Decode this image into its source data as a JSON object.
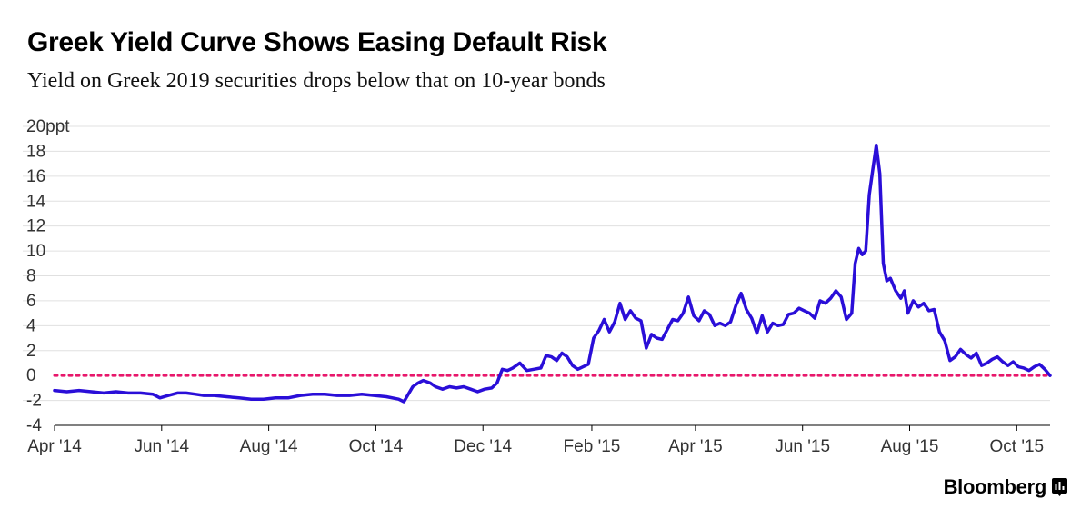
{
  "header": {
    "title": "Greek Yield Curve Shows Easing Default Risk",
    "subtitle": "Yield on Greek 2019 securities drops below that on 10-year bonds"
  },
  "footer": {
    "brand": "Bloomberg"
  },
  "colors": {
    "series": "#2a0ed8",
    "zero_line": "#e8176b",
    "grid": "#e0e0e0",
    "axis": "#000000"
  },
  "chart_data": {
    "type": "line",
    "title": "Greek Yield Curve Shows Easing Default Risk",
    "subtitle": "Yield on Greek 2019 securities drops below that on 10-year bonds",
    "ylim": [
      -4,
      20
    ],
    "yticks": [
      -4,
      -2,
      0,
      2,
      4,
      6,
      8,
      10,
      12,
      14,
      16,
      18,
      20
    ],
    "ytick_labels": [
      "-4",
      "-2",
      "0",
      "2",
      "4",
      "6",
      "8",
      "10",
      "12",
      "14",
      "16",
      "18",
      "20ppt"
    ],
    "xlim": [
      "2014-04-01",
      "2015-10-20"
    ],
    "xticks": [
      "2014-04-01",
      "2014-06-01",
      "2014-08-01",
      "2014-10-01",
      "2014-12-01",
      "2015-02-01",
      "2015-04-01",
      "2015-06-01",
      "2015-08-01",
      "2015-10-01"
    ],
    "xtick_labels": [
      "Apr '14",
      "Jun '14",
      "Aug '14",
      "Oct '14",
      "Dec '14",
      "Feb '15",
      "Apr '15",
      "Jun '15",
      "Aug '15",
      "Oct '15"
    ],
    "grid": true,
    "reference_line": {
      "y": 0,
      "style": "dotted"
    },
    "series": [
      {
        "points": [
          [
            "2014-04-01",
            -1.2
          ],
          [
            "2014-04-08",
            -1.3
          ],
          [
            "2014-04-15",
            -1.2
          ],
          [
            "2014-04-22",
            -1.3
          ],
          [
            "2014-04-29",
            -1.4
          ],
          [
            "2014-05-06",
            -1.3
          ],
          [
            "2014-05-13",
            -1.4
          ],
          [
            "2014-05-20",
            -1.4
          ],
          [
            "2014-05-27",
            -1.5
          ],
          [
            "2014-05-31",
            -1.8
          ],
          [
            "2014-06-05",
            -1.6
          ],
          [
            "2014-06-10",
            -1.4
          ],
          [
            "2014-06-15",
            -1.4
          ],
          [
            "2014-06-20",
            -1.5
          ],
          [
            "2014-06-25",
            -1.6
          ],
          [
            "2014-07-01",
            -1.6
          ],
          [
            "2014-07-08",
            -1.7
          ],
          [
            "2014-07-15",
            -1.8
          ],
          [
            "2014-07-22",
            -1.9
          ],
          [
            "2014-07-29",
            -1.9
          ],
          [
            "2014-08-05",
            -1.8
          ],
          [
            "2014-08-12",
            -1.8
          ],
          [
            "2014-08-19",
            -1.6
          ],
          [
            "2014-08-26",
            -1.5
          ],
          [
            "2014-09-02",
            -1.5
          ],
          [
            "2014-09-09",
            -1.6
          ],
          [
            "2014-09-16",
            -1.6
          ],
          [
            "2014-09-23",
            -1.5
          ],
          [
            "2014-09-30",
            -1.6
          ],
          [
            "2014-10-07",
            -1.7
          ],
          [
            "2014-10-14",
            -1.9
          ],
          [
            "2014-10-17",
            -2.1
          ],
          [
            "2014-10-22",
            -0.9
          ],
          [
            "2014-10-25",
            -0.6
          ],
          [
            "2014-10-28",
            -0.4
          ],
          [
            "2014-11-01",
            -0.6
          ],
          [
            "2014-11-04",
            -0.9
          ],
          [
            "2014-11-08",
            -1.1
          ],
          [
            "2014-11-12",
            -0.9
          ],
          [
            "2014-11-16",
            -1.0
          ],
          [
            "2014-11-20",
            -0.9
          ],
          [
            "2014-11-24",
            -1.1
          ],
          [
            "2014-11-28",
            -1.3
          ],
          [
            "2014-12-02",
            -1.1
          ],
          [
            "2014-12-06",
            -1.0
          ],
          [
            "2014-12-09",
            -0.6
          ],
          [
            "2014-12-12",
            0.5
          ],
          [
            "2014-12-15",
            0.4
          ],
          [
            "2014-12-18",
            0.6
          ],
          [
            "2014-12-22",
            1.0
          ],
          [
            "2014-12-26",
            0.4
          ],
          [
            "2014-12-30",
            0.5
          ],
          [
            "2015-01-03",
            0.6
          ],
          [
            "2015-01-06",
            1.6
          ],
          [
            "2015-01-09",
            1.5
          ],
          [
            "2015-01-12",
            1.2
          ],
          [
            "2015-01-15",
            1.8
          ],
          [
            "2015-01-18",
            1.5
          ],
          [
            "2015-01-21",
            0.8
          ],
          [
            "2015-01-24",
            0.5
          ],
          [
            "2015-01-27",
            0.7
          ],
          [
            "2015-01-30",
            0.9
          ],
          [
            "2015-02-02",
            3.0
          ],
          [
            "2015-02-05",
            3.6
          ],
          [
            "2015-02-08",
            4.5
          ],
          [
            "2015-02-11",
            3.5
          ],
          [
            "2015-02-14",
            4.3
          ],
          [
            "2015-02-17",
            5.8
          ],
          [
            "2015-02-20",
            4.5
          ],
          [
            "2015-02-23",
            5.2
          ],
          [
            "2015-02-26",
            4.6
          ],
          [
            "2015-03-01",
            4.4
          ],
          [
            "2015-03-04",
            2.2
          ],
          [
            "2015-03-07",
            3.3
          ],
          [
            "2015-03-10",
            3.0
          ],
          [
            "2015-03-13",
            2.9
          ],
          [
            "2015-03-16",
            3.7
          ],
          [
            "2015-03-19",
            4.5
          ],
          [
            "2015-03-22",
            4.4
          ],
          [
            "2015-03-25",
            5.0
          ],
          [
            "2015-03-28",
            6.3
          ],
          [
            "2015-03-31",
            4.8
          ],
          [
            "2015-04-03",
            4.4
          ],
          [
            "2015-04-06",
            5.2
          ],
          [
            "2015-04-09",
            4.9
          ],
          [
            "2015-04-12",
            4.0
          ],
          [
            "2015-04-15",
            4.2
          ],
          [
            "2015-04-18",
            4.0
          ],
          [
            "2015-04-21",
            4.3
          ],
          [
            "2015-04-24",
            5.6
          ],
          [
            "2015-04-27",
            6.6
          ],
          [
            "2015-04-30",
            5.3
          ],
          [
            "2015-05-03",
            4.6
          ],
          [
            "2015-05-06",
            3.4
          ],
          [
            "2015-05-09",
            4.8
          ],
          [
            "2015-05-12",
            3.5
          ],
          [
            "2015-05-15",
            4.2
          ],
          [
            "2015-05-18",
            4.0
          ],
          [
            "2015-05-21",
            4.1
          ],
          [
            "2015-05-24",
            4.9
          ],
          [
            "2015-05-27",
            5.0
          ],
          [
            "2015-05-30",
            5.4
          ],
          [
            "2015-06-02",
            5.2
          ],
          [
            "2015-06-05",
            5.0
          ],
          [
            "2015-06-08",
            4.6
          ],
          [
            "2015-06-11",
            6.0
          ],
          [
            "2015-06-14",
            5.8
          ],
          [
            "2015-06-17",
            6.2
          ],
          [
            "2015-06-20",
            6.8
          ],
          [
            "2015-06-23",
            6.3
          ],
          [
            "2015-06-26",
            4.5
          ],
          [
            "2015-06-29",
            5.0
          ],
          [
            "2015-07-01",
            9.0
          ],
          [
            "2015-07-03",
            10.2
          ],
          [
            "2015-07-05",
            9.7
          ],
          [
            "2015-07-07",
            10.0
          ],
          [
            "2015-07-09",
            14.5
          ],
          [
            "2015-07-11",
            16.5
          ],
          [
            "2015-07-13",
            18.5
          ],
          [
            "2015-07-15",
            16.2
          ],
          [
            "2015-07-17",
            9.0
          ],
          [
            "2015-07-19",
            7.6
          ],
          [
            "2015-07-21",
            7.8
          ],
          [
            "2015-07-24",
            6.8
          ],
          [
            "2015-07-27",
            6.2
          ],
          [
            "2015-07-29",
            6.8
          ],
          [
            "2015-07-31",
            5.0
          ],
          [
            "2015-08-03",
            6.0
          ],
          [
            "2015-08-06",
            5.5
          ],
          [
            "2015-08-09",
            5.8
          ],
          [
            "2015-08-12",
            5.2
          ],
          [
            "2015-08-15",
            5.3
          ],
          [
            "2015-08-18",
            3.5
          ],
          [
            "2015-08-21",
            2.8
          ],
          [
            "2015-08-24",
            1.2
          ],
          [
            "2015-08-27",
            1.5
          ],
          [
            "2015-08-30",
            2.1
          ],
          [
            "2015-09-02",
            1.7
          ],
          [
            "2015-09-05",
            1.4
          ],
          [
            "2015-09-08",
            1.8
          ],
          [
            "2015-09-11",
            0.8
          ],
          [
            "2015-09-14",
            1.0
          ],
          [
            "2015-09-17",
            1.3
          ],
          [
            "2015-09-20",
            1.5
          ],
          [
            "2015-09-23",
            1.1
          ],
          [
            "2015-09-26",
            0.8
          ],
          [
            "2015-09-29",
            1.1
          ],
          [
            "2015-10-02",
            0.7
          ],
          [
            "2015-10-05",
            0.6
          ],
          [
            "2015-10-08",
            0.4
          ],
          [
            "2015-10-11",
            0.7
          ],
          [
            "2015-10-14",
            0.9
          ],
          [
            "2015-10-17",
            0.5
          ],
          [
            "2015-10-20",
            0.0
          ]
        ]
      }
    ]
  }
}
